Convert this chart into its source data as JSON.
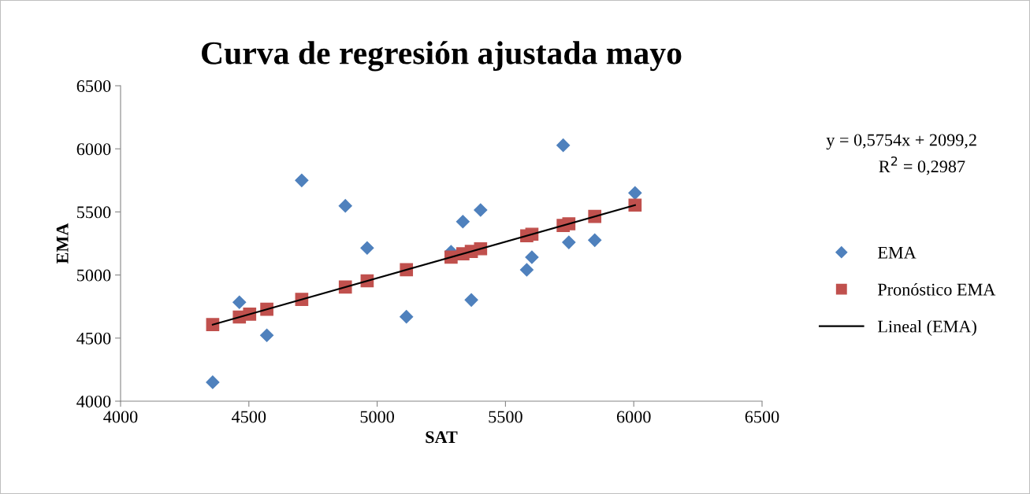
{
  "chart_data": {
    "type": "scatter",
    "title": "Curva de regresión ajustada mayo",
    "xlabel": "SAT",
    "ylabel": "EMA",
    "xlim": [
      4000,
      6500
    ],
    "xticks": [
      4000,
      4500,
      5000,
      5500,
      6000,
      6500
    ],
    "ylim": [
      4000,
      6500
    ],
    "yticks": [
      4000,
      4500,
      5000,
      5500,
      6000,
      6500
    ],
    "grid": false,
    "legend": "right",
    "series": [
      {
        "name": "EMA",
        "marker": "diamond",
        "color": "#4f81bd",
        "x": [
          4359,
          4463,
          4570,
          4706,
          4876,
          4961,
          5114,
          5288,
          5334,
          5367,
          5403,
          5583,
          5603,
          5725,
          5747,
          5848,
          6005
        ],
        "values": [
          4150,
          4784,
          4522,
          5750,
          5548,
          5214,
          4669,
          5184,
          5423,
          4802,
          5515,
          5041,
          5141,
          6028,
          5259,
          5276,
          5650
        ]
      },
      {
        "name": "Pronóstico EMA",
        "marker": "square",
        "color": "#c0504d",
        "x": [
          4359,
          4463,
          4503,
          4570,
          4706,
          4876,
          4961,
          5114,
          5288,
          5334,
          5367,
          5403,
          5583,
          5603,
          5725,
          5747,
          5848,
          6005
        ],
        "values": [
          4607,
          4667,
          4690,
          4729,
          4807,
          4905,
          4954,
          5042,
          5142,
          5168,
          5187,
          5208,
          5311,
          5323,
          5393,
          5406,
          5464,
          5554
        ]
      },
      {
        "name": "Lineal (EMA)",
        "type": "line",
        "line_style": "solid",
        "color": "#000000",
        "x": [
          4359,
          6005
        ],
        "values": [
          4607,
          5554
        ]
      }
    ],
    "annotations": [
      "y = 0,5754x + 2099,2",
      "R$^{2}$ = 0,2987"
    ]
  }
}
